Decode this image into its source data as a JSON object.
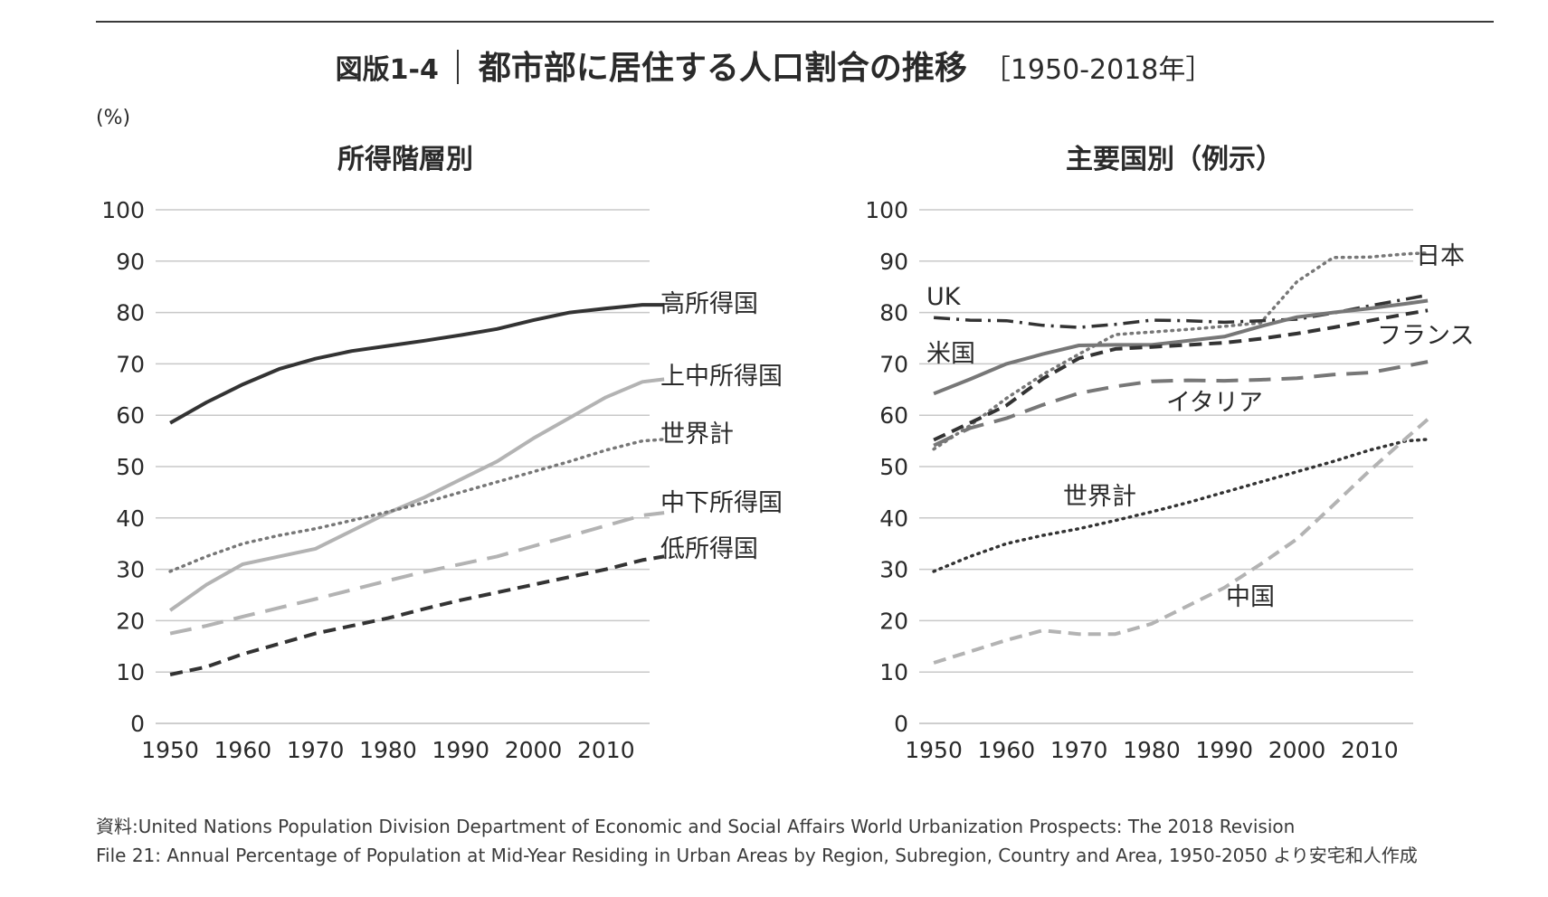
{
  "figure": {
    "label": "図版1-4",
    "title": "都市部に居住する人口割合の推移",
    "years_label": "［1950-2018年］",
    "unit": "(%)",
    "source_line1": "資料:United Nations Population Division Department of Economic and Social Affairs World Urbanization Prospects: The 2018 Revision",
    "source_line2": "File 21: Annual Percentage of Population at Mid-Year Residing in Urban Areas by Region, Subregion, Country and Area, 1950-2050 より安宅和人作成"
  },
  "colors": {
    "dark": "#333333",
    "mid": "#777777",
    "light": "#b3b3b3",
    "grid": "#c8c8c8"
  },
  "chart_data": [
    {
      "type": "line",
      "title": "所得階層別",
      "xlabel": "",
      "ylabel": "(%)",
      "xlim": [
        1948,
        2016
      ],
      "ylim": [
        0,
        100
      ],
      "xticks": [
        1950,
        1960,
        1970,
        1980,
        1990,
        2000,
        2010
      ],
      "yticks": [
        0,
        10,
        20,
        30,
        40,
        50,
        60,
        70,
        80,
        90,
        100
      ],
      "x": [
        1950,
        1955,
        1960,
        1965,
        1970,
        1975,
        1980,
        1985,
        1990,
        1995,
        2000,
        2005,
        2010,
        2015,
        2018
      ],
      "series": [
        {
          "name": "高所得国",
          "style": "solid",
          "color": "#333333",
          "values": [
            58.5,
            62.5,
            66.0,
            69.0,
            71.0,
            72.5,
            73.5,
            74.5,
            75.6,
            76.8,
            78.5,
            80.0,
            80.8,
            81.5,
            81.5
          ]
        },
        {
          "name": "上中所得国",
          "style": "solid",
          "color": "#b3b3b3",
          "values": [
            22.0,
            27.0,
            31.0,
            32.5,
            34.0,
            37.5,
            41.0,
            44.0,
            47.5,
            51.0,
            55.5,
            59.5,
            63.5,
            66.5,
            67.0
          ]
        },
        {
          "name": "世界計",
          "style": "dotted",
          "color": "#777777",
          "values": [
            29.6,
            32.5,
            35.0,
            36.6,
            37.9,
            39.5,
            41.2,
            43.0,
            45.0,
            47.0,
            49.0,
            51.0,
            53.2,
            55.0,
            55.3
          ]
        },
        {
          "name": "中下所得国",
          "style": "longdash",
          "color": "#b3b3b3",
          "values": [
            17.5,
            19.0,
            20.8,
            22.5,
            24.2,
            26.0,
            27.8,
            29.5,
            31.0,
            32.5,
            34.5,
            36.5,
            38.5,
            40.5,
            41.0
          ]
        },
        {
          "name": "低所得国",
          "style": "dash",
          "color": "#333333",
          "values": [
            9.5,
            11.0,
            13.5,
            15.5,
            17.5,
            19.0,
            20.5,
            22.3,
            24.0,
            25.5,
            27.0,
            28.5,
            30.0,
            31.8,
            32.5
          ]
        }
      ],
      "legend": "inline-right"
    },
    {
      "type": "line",
      "title": "主要国別（例示）",
      "xlabel": "",
      "ylabel": "(%)",
      "xlim": [
        1948,
        2016
      ],
      "ylim": [
        0,
        100
      ],
      "xticks": [
        1950,
        1960,
        1970,
        1980,
        1990,
        2000,
        2010
      ],
      "yticks": [
        0,
        10,
        20,
        30,
        40,
        50,
        60,
        70,
        80,
        90,
        100
      ],
      "x": [
        1950,
        1955,
        1960,
        1965,
        1970,
        1975,
        1980,
        1985,
        1990,
        1995,
        2000,
        2005,
        2010,
        2015,
        2018
      ],
      "series": [
        {
          "name": "日本",
          "style": "dotted",
          "color": "#777777",
          "values": [
            53.4,
            58.0,
            63.3,
            67.9,
            71.9,
            75.7,
            76.2,
            76.7,
            77.3,
            78.0,
            86.0,
            90.7,
            90.8,
            91.4,
            91.6
          ]
        },
        {
          "name": "UK",
          "style": "dashdot",
          "color": "#333333",
          "values": [
            79.0,
            78.5,
            78.4,
            77.5,
            77.1,
            77.7,
            78.5,
            78.4,
            78.1,
            78.4,
            78.7,
            79.9,
            81.3,
            82.6,
            83.4
          ]
        },
        {
          "name": "米国",
          "style": "solid",
          "color": "#777777",
          "values": [
            64.2,
            67.0,
            70.0,
            71.9,
            73.6,
            73.7,
            73.7,
            74.5,
            75.3,
            77.3,
            79.1,
            80.0,
            80.8,
            81.7,
            82.3
          ]
        },
        {
          "name": "フランス",
          "style": "dash",
          "color": "#333333",
          "values": [
            55.2,
            58.5,
            61.9,
            67.1,
            71.1,
            72.9,
            73.3,
            73.7,
            74.1,
            74.9,
            75.9,
            77.1,
            78.4,
            79.7,
            80.4
          ]
        },
        {
          "name": "イタリア",
          "style": "longdash",
          "color": "#777777",
          "values": [
            54.1,
            57.5,
            59.4,
            62.0,
            64.3,
            65.6,
            66.6,
            66.8,
            66.7,
            66.9,
            67.2,
            67.9,
            68.3,
            69.6,
            70.4
          ]
        },
        {
          "name": "世界計",
          "style": "dotted",
          "color": "#333333",
          "values": [
            29.6,
            32.5,
            35.0,
            36.6,
            37.9,
            39.5,
            41.2,
            43.0,
            45.0,
            47.0,
            49.0,
            51.0,
            53.2,
            55.0,
            55.3
          ]
        },
        {
          "name": "中国",
          "style": "dash",
          "color": "#b3b3b3",
          "values": [
            11.8,
            14.0,
            16.2,
            18.1,
            17.4,
            17.4,
            19.4,
            22.9,
            26.4,
            31.0,
            35.9,
            42.5,
            49.2,
            55.5,
            59.2
          ]
        }
      ],
      "legend": "inline"
    }
  ]
}
